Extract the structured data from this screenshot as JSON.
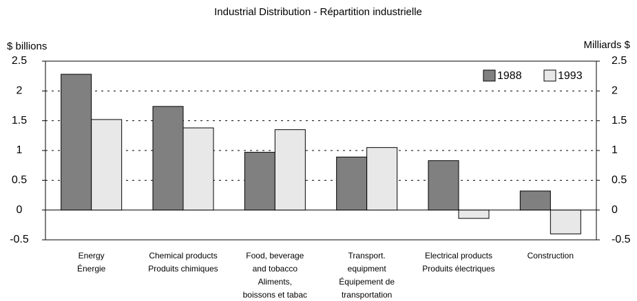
{
  "chart_data": {
    "type": "bar",
    "title": "Industrial Distribution - Répartition industrielle",
    "y_label": "$ billions",
    "y2_label": "Milliards $",
    "categories": [
      [
        "Energy",
        "Énergie"
      ],
      [
        "Chemical products",
        "Produits chimiques"
      ],
      [
        "Food, beverage",
        "and tobacco",
        "Aliments,",
        "boissons et tabac"
      ],
      [
        "Transport.",
        "equipment",
        "Équipement de",
        "transportation"
      ],
      [
        "Electrical products",
        "Produits électriques"
      ],
      [
        "Construction"
      ]
    ],
    "series": [
      {
        "name": "1988",
        "color": "#808080",
        "values": [
          2.28,
          1.74,
          0.97,
          0.89,
          0.83,
          0.32
        ]
      },
      {
        "name": "1993",
        "color": "#e8e8e8",
        "values": [
          1.52,
          1.38,
          1.35,
          1.05,
          -0.14,
          -0.4
        ]
      }
    ],
    "ylim": [
      -0.5,
      2.5
    ],
    "yticks": [
      -0.5,
      0,
      0.5,
      1,
      1.5,
      2,
      2.5
    ],
    "y2lim": [
      -0.5,
      2.5
    ],
    "y2ticks": [
      -0.5,
      0,
      0.5,
      1,
      1.5,
      2,
      2.5
    ],
    "grid": true,
    "legend": "top-right"
  }
}
